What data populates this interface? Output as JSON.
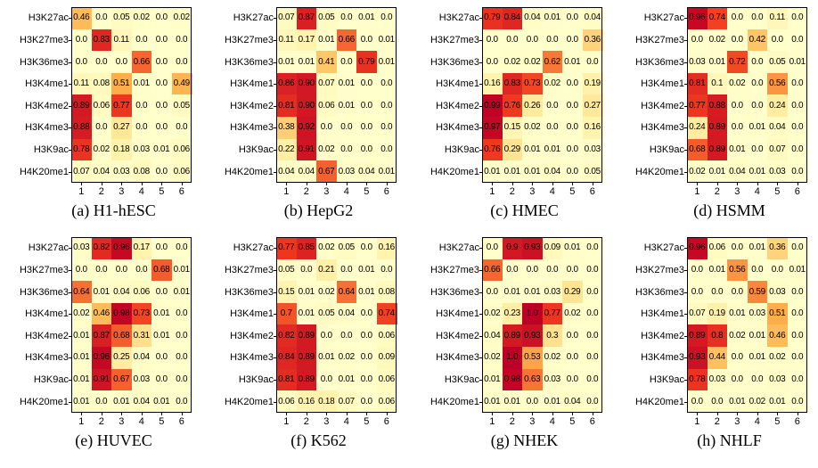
{
  "chart_data": [
    {
      "type": "heatmap",
      "caption": "(a) H1-hESC",
      "rows": [
        "H3K27ac",
        "H3K27me3",
        "H3K36me3",
        "H3K4me1",
        "H3K4me2",
        "H3K4me3",
        "H3K9ac",
        "H4K20me1"
      ],
      "columns": [
        "1",
        "2",
        "3",
        "4",
        "5",
        "6"
      ],
      "values": [
        [
          0.46,
          0.0,
          0.05,
          0.02,
          0.0,
          0.02
        ],
        [
          0.0,
          0.83,
          0.11,
          0.0,
          0.0,
          0.0
        ],
        [
          0.0,
          0.0,
          0.0,
          0.66,
          0.0,
          0.0
        ],
        [
          0.11,
          0.08,
          0.51,
          0.01,
          0.0,
          0.49
        ],
        [
          0.89,
          0.06,
          0.77,
          0.0,
          0.0,
          0.05
        ],
        [
          0.88,
          0.0,
          0.27,
          0.0,
          0.0,
          0.0
        ],
        [
          0.78,
          0.02,
          0.18,
          0.03,
          0.01,
          0.06
        ],
        [
          0.07,
          0.04,
          0.03,
          0.08,
          0.0,
          0.06
        ]
      ],
      "labels": [
        [
          "0.46",
          "0.0",
          "0.05",
          "0.02",
          "0.0",
          "0.02"
        ],
        [
          "0.0",
          "0.83",
          "0.11",
          "0.0",
          "0.0",
          "0.0"
        ],
        [
          "0.0",
          "0.0",
          "0.0",
          "0.66",
          "0.0",
          "0.0"
        ],
        [
          "0.11",
          "0.08",
          "0.51",
          "0.01",
          "0.0",
          "0.49"
        ],
        [
          "0.89",
          "0.06",
          "0.77",
          "0.0",
          "0.0",
          "0.05"
        ],
        [
          "0.88",
          "0.0",
          "0.27",
          "0.0",
          "0.0",
          "0.0"
        ],
        [
          "0.78",
          "0.02",
          "0.18",
          "0.03",
          "0.01",
          "0.06"
        ],
        [
          "0.07",
          "0.04",
          "0.03",
          "0.08",
          "0.0",
          "0.06"
        ]
      ]
    },
    {
      "type": "heatmap",
      "caption": "(b) HepG2",
      "rows": [
        "H3K27ac",
        "H3K27me3",
        "H3K36me3",
        "H3K4me1",
        "H3K4me2",
        "H3K4me3",
        "H3K9ac",
        "H4K20me1"
      ],
      "columns": [
        "1",
        "2",
        "3",
        "4",
        "5",
        "6"
      ],
      "values": [
        [
          0.07,
          0.87,
          0.05,
          0.0,
          0.01,
          0.0
        ],
        [
          0.11,
          0.17,
          0.01,
          0.66,
          0.0,
          0.01
        ],
        [
          0.01,
          0.01,
          0.41,
          0.0,
          0.79,
          0.01
        ],
        [
          0.86,
          0.9,
          0.07,
          0.01,
          0.0,
          0.0
        ],
        [
          0.81,
          0.9,
          0.06,
          0.01,
          0.0,
          0.0
        ],
        [
          0.38,
          0.92,
          0.0,
          0.0,
          0.0,
          0.0
        ],
        [
          0.22,
          0.91,
          0.02,
          0.0,
          0.0,
          0.0
        ],
        [
          0.04,
          0.04,
          0.67,
          0.03,
          0.04,
          0.01
        ]
      ],
      "labels": [
        [
          "0.07",
          "0.87",
          "0.05",
          "0.0",
          "0.01",
          "0.0"
        ],
        [
          "0.11",
          "0.17",
          "0.01",
          "0.66",
          "0.0",
          "0.01"
        ],
        [
          "0.01",
          "0.01",
          "0.41",
          "0.0",
          "0.79",
          "0.01"
        ],
        [
          "0.86",
          "0.90",
          "0.07",
          "0.01",
          "0.0",
          "0.0"
        ],
        [
          "0.81",
          "0.90",
          "0.06",
          "0.01",
          "0.0",
          "0.0"
        ],
        [
          "0.38",
          "0.92",
          "0.0",
          "0.0",
          "0.0",
          "0.0"
        ],
        [
          "0.22",
          "0.91",
          "0.02",
          "0.0",
          "0.0",
          "0.0"
        ],
        [
          "0.04",
          "0.04",
          "0.67",
          "0.03",
          "0.04",
          "0.01"
        ]
      ]
    },
    {
      "type": "heatmap",
      "caption": "(c) HMEC",
      "rows": [
        "H3K27ac",
        "H3K27me3",
        "H3K36me3",
        "H3K4me1",
        "H3K4me2",
        "H3K4me3",
        "H3K9ac",
        "H4K20me1"
      ],
      "columns": [
        "1",
        "2",
        "3",
        "4",
        "5",
        "6"
      ],
      "values": [
        [
          0.79,
          0.84,
          0.04,
          0.01,
          0.0,
          0.04
        ],
        [
          0.0,
          0.0,
          0.0,
          0.0,
          0.0,
          0.36
        ],
        [
          0.0,
          0.02,
          0.02,
          0.62,
          0.01,
          0.0
        ],
        [
          0.16,
          0.83,
          0.73,
          0.02,
          0.0,
          0.19
        ],
        [
          0.99,
          0.76,
          0.26,
          0.0,
          0.0,
          0.27
        ],
        [
          0.97,
          0.15,
          0.02,
          0.0,
          0.0,
          0.16
        ],
        [
          0.76,
          0.29,
          0.01,
          0.01,
          0.0,
          0.03
        ],
        [
          0.01,
          0.01,
          0.01,
          0.04,
          0.0,
          0.05
        ]
      ],
      "labels": [
        [
          "0.79",
          "0.84",
          "0.04",
          "0.01",
          "0.0",
          "0.04"
        ],
        [
          "0.0",
          "0.0",
          "0.0",
          "0.0",
          "0.0",
          "0.36"
        ],
        [
          "0.0",
          "0.02",
          "0.02",
          "0.62",
          "0.01",
          "0.0"
        ],
        [
          "0.16",
          "0.83",
          "0.73",
          "0.02",
          "0.0",
          "0.19"
        ],
        [
          "0.99",
          "0.76",
          "0.26",
          "0.0",
          "0.0",
          "0.27"
        ],
        [
          "0.97",
          "0.15",
          "0.02",
          "0.0",
          "0.0",
          "0.16"
        ],
        [
          "0.76",
          "0.29",
          "0.01",
          "0.01",
          "0.0",
          "0.03"
        ],
        [
          "0.01",
          "0.01",
          "0.01",
          "0.04",
          "0.0",
          "0.05"
        ]
      ]
    },
    {
      "type": "heatmap",
      "caption": "(d) HSMM",
      "rows": [
        "H3K27ac",
        "H3K27me3",
        "H3K36me3",
        "H3K4me1",
        "H3K4me2",
        "H3K4me3",
        "H3K9ac",
        "H4K20me1"
      ],
      "columns": [
        "1",
        "2",
        "3",
        "4",
        "5",
        "6"
      ],
      "values": [
        [
          0.96,
          0.74,
          0.0,
          0.0,
          0.11,
          0.0
        ],
        [
          0.0,
          0.02,
          0.0,
          0.42,
          0.0,
          0.0
        ],
        [
          0.03,
          0.01,
          0.72,
          0.0,
          0.05,
          0.01
        ],
        [
          0.81,
          0.1,
          0.02,
          0.0,
          0.56,
          0.0
        ],
        [
          0.77,
          0.88,
          0.0,
          0.0,
          0.24,
          0.0
        ],
        [
          0.24,
          0.89,
          0.0,
          0.01,
          0.04,
          0.0
        ],
        [
          0.68,
          0.89,
          0.01,
          0.0,
          0.07,
          0.0
        ],
        [
          0.02,
          0.01,
          0.04,
          0.01,
          0.03,
          0.0
        ]
      ],
      "labels": [
        [
          "0.96",
          "0.74",
          "0.0",
          "0.0",
          "0.11",
          "0.0"
        ],
        [
          "0.0",
          "0.02",
          "0.0",
          "0.42",
          "0.0",
          "0.0"
        ],
        [
          "0.03",
          "0.01",
          "0.72",
          "0.0",
          "0.05",
          "0.01"
        ],
        [
          "0.81",
          "0.1",
          "0.02",
          "0.0",
          "0.56",
          "0.0"
        ],
        [
          "0.77",
          "0.88",
          "0.0",
          "0.0",
          "0.24",
          "0.0"
        ],
        [
          "0.24",
          "0.89",
          "0.0",
          "0.01",
          "0.04",
          "0.0"
        ],
        [
          "0.68",
          "0.89",
          "0.01",
          "0.0",
          "0.07",
          "0.0"
        ],
        [
          "0.02",
          "0.01",
          "0.04",
          "0.01",
          "0.03",
          "0.0"
        ]
      ]
    },
    {
      "type": "heatmap",
      "caption": "(e) HUVEC",
      "rows": [
        "H3K27ac",
        "H3K27me3",
        "H3K36me3",
        "H3K4me1",
        "H3K4me2",
        "H3K4me3",
        "H3K9ac",
        "H4K20me1"
      ],
      "columns": [
        "1",
        "2",
        "3",
        "4",
        "5",
        "6"
      ],
      "values": [
        [
          0.03,
          0.82,
          0.96,
          0.17,
          0.0,
          0.0
        ],
        [
          0.0,
          0.0,
          0.0,
          0.0,
          0.68,
          0.01
        ],
        [
          0.64,
          0.01,
          0.04,
          0.06,
          0.0,
          0.01
        ],
        [
          0.02,
          0.46,
          0.98,
          0.73,
          0.01,
          0.0
        ],
        [
          0.01,
          0.87,
          0.68,
          0.31,
          0.01,
          0.0
        ],
        [
          0.01,
          0.96,
          0.25,
          0.04,
          0.0,
          0.0
        ],
        [
          0.01,
          0.91,
          0.67,
          0.03,
          0.0,
          0.0
        ],
        [
          0.01,
          0.0,
          0.01,
          0.04,
          0.01,
          0.0
        ]
      ],
      "labels": [
        [
          "0.03",
          "0.82",
          "0.96",
          "0.17",
          "0.0",
          "0.0"
        ],
        [
          "0.0",
          "0.0",
          "0.0",
          "0.0",
          "0.68",
          "0.01"
        ],
        [
          "0.64",
          "0.01",
          "0.04",
          "0.06",
          "0.0",
          "0.01"
        ],
        [
          "0.02",
          "0.46",
          "0.98",
          "0.73",
          "0.01",
          "0.0"
        ],
        [
          "0.01",
          "0.87",
          "0.68",
          "0.31",
          "0.01",
          "0.0"
        ],
        [
          "0.01",
          "0.96",
          "0.25",
          "0.04",
          "0.0",
          "0.0"
        ],
        [
          "0.01",
          "0.91",
          "0.67",
          "0.03",
          "0.0",
          "0.0"
        ],
        [
          "0.01",
          "0.0",
          "0.01",
          "0.04",
          "0.01",
          "0.0"
        ]
      ]
    },
    {
      "type": "heatmap",
      "caption": "(f) K562",
      "rows": [
        "H3K27ac",
        "H3K27me3",
        "H3K36me3",
        "H3K4me1",
        "H3K4me2",
        "H3K4me3",
        "H3K9ac",
        "H4K20me1"
      ],
      "columns": [
        "1",
        "2",
        "3",
        "4",
        "5",
        "6"
      ],
      "values": [
        [
          0.77,
          0.85,
          0.02,
          0.05,
          0.0,
          0.16
        ],
        [
          0.05,
          0.0,
          0.21,
          0.0,
          0.01,
          0.0
        ],
        [
          0.15,
          0.01,
          0.02,
          0.64,
          0.01,
          0.08
        ],
        [
          0.7,
          0.01,
          0.05,
          0.04,
          0.0,
          0.74
        ],
        [
          0.82,
          0.89,
          0.0,
          0.0,
          0.0,
          0.06
        ],
        [
          0.84,
          0.89,
          0.01,
          0.02,
          0.0,
          0.09
        ],
        [
          0.81,
          0.89,
          0.0,
          0.01,
          0.0,
          0.06
        ],
        [
          0.06,
          0.16,
          0.18,
          0.07,
          0.0,
          0.06
        ]
      ],
      "labels": [
        [
          "0.77",
          "0.85",
          "0.02",
          "0.05",
          "0.0",
          "0.16"
        ],
        [
          "0.05",
          "0.0",
          "0.21",
          "0.0",
          "0.01",
          "0.0"
        ],
        [
          "0.15",
          "0.01",
          "0.02",
          "0.64",
          "0.01",
          "0.08"
        ],
        [
          "0.7",
          "0.01",
          "0.05",
          "0.04",
          "0.0",
          "0.74"
        ],
        [
          "0.82",
          "0.89",
          "0.0",
          "0.0",
          "0.0",
          "0.06"
        ],
        [
          "0.84",
          "0.89",
          "0.01",
          "0.02",
          "0.0",
          "0.09"
        ],
        [
          "0.81",
          "0.89",
          "0.0",
          "0.01",
          "0.0",
          "0.06"
        ],
        [
          "0.06",
          "0.16",
          "0.18",
          "0.07",
          "0.0",
          "0.06"
        ]
      ]
    },
    {
      "type": "heatmap",
      "caption": "(g) NHEK",
      "rows": [
        "H3K27ac",
        "H3K27me3",
        "H3K36me3",
        "H3K4me1",
        "H3K4me2",
        "H3K4me3",
        "H3K9ac",
        "H4K20me1"
      ],
      "columns": [
        "1",
        "2",
        "3",
        "4",
        "5",
        "6"
      ],
      "values": [
        [
          0.0,
          0.9,
          0.93,
          0.09,
          0.01,
          0.0
        ],
        [
          0.66,
          0.0,
          0.0,
          0.0,
          0.0,
          0.0
        ],
        [
          0.0,
          0.01,
          0.01,
          0.03,
          0.29,
          0.0
        ],
        [
          0.02,
          0.23,
          1.0,
          0.77,
          0.02,
          0.0
        ],
        [
          0.04,
          0.89,
          0.93,
          0.3,
          0.0,
          0.0
        ],
        [
          0.02,
          1.0,
          0.53,
          0.02,
          0.0,
          0.0
        ],
        [
          0.01,
          0.98,
          0.63,
          0.03,
          0.0,
          0.0
        ],
        [
          0.01,
          0.01,
          0.0,
          0.01,
          0.04,
          0.0
        ]
      ],
      "labels": [
        [
          "0.0",
          "0.9",
          "0.93",
          "0.09",
          "0.01",
          "0.0"
        ],
        [
          "0.66",
          "0.0",
          "0.0",
          "0.0",
          "0.0",
          "0.0"
        ],
        [
          "0.0",
          "0.01",
          "0.01",
          "0.03",
          "0.29",
          "0.0"
        ],
        [
          "0.02",
          "0.23",
          "1.0",
          "0.77",
          "0.02",
          "0.0"
        ],
        [
          "0.04",
          "0.89",
          "0.93",
          "0.3",
          "0.0",
          "0.0"
        ],
        [
          "0.02",
          "1.0",
          "0.53",
          "0.02",
          "0.0",
          "0.0"
        ],
        [
          "0.01",
          "0.98",
          "0.63",
          "0.03",
          "0.0",
          "0.0"
        ],
        [
          "0.01",
          "0.01",
          "0.0",
          "0.01",
          "0.04",
          "0.0"
        ]
      ]
    },
    {
      "type": "heatmap",
      "caption": "(h) NHLF",
      "rows": [
        "H3K27ac",
        "H3K27me3",
        "H3K36me3",
        "H3K4me1",
        "H3K4me2",
        "H3K4me3",
        "H3K9ac",
        "H4K20me1"
      ],
      "columns": [
        "1",
        "2",
        "3",
        "4",
        "5",
        "6"
      ],
      "values": [
        [
          0.96,
          0.06,
          0.0,
          0.01,
          0.36,
          0.0
        ],
        [
          0.0,
          0.01,
          0.56,
          0.0,
          0.0,
          0.01
        ],
        [
          0.0,
          0.0,
          0.0,
          0.59,
          0.03,
          0.0
        ],
        [
          0.07,
          0.19,
          0.01,
          0.03,
          0.51,
          0.0
        ],
        [
          0.89,
          0.8,
          0.02,
          0.01,
          0.46,
          0.0
        ],
        [
          0.93,
          0.44,
          0.0,
          0.01,
          0.02,
          0.0
        ],
        [
          0.78,
          0.03,
          0.0,
          0.0,
          0.03,
          0.0
        ],
        [
          0.0,
          0.0,
          0.01,
          0.02,
          0.01,
          0.0
        ]
      ],
      "labels": [
        [
          "0.96",
          "0.06",
          "0.0",
          "0.01",
          "0.36",
          "0.0"
        ],
        [
          "0.0",
          "0.01",
          "0.56",
          "0.0",
          "0.0",
          "0.01"
        ],
        [
          "0.0",
          "0.0",
          "0.0",
          "0.59",
          "0.03",
          "0.0"
        ],
        [
          "0.07",
          "0.19",
          "0.01",
          "0.03",
          "0.51",
          "0.0"
        ],
        [
          "0.89",
          "0.8",
          "0.02",
          "0.01",
          "0.46",
          "0.0"
        ],
        [
          "0.93",
          "0.44",
          "0.0",
          "0.01",
          "0.02",
          "0.0"
        ],
        [
          "0.78",
          "0.03",
          "0.0",
          "0.0",
          "0.03",
          "0.0"
        ],
        [
          "0.0",
          "0.0",
          "0.01",
          "0.02",
          "0.01",
          "0.0"
        ]
      ]
    }
  ],
  "colormap": {
    "low": "#ffffcc",
    "mid_low": "#ffeda0",
    "mid": "#feb24c",
    "mid_high": "#f03b20",
    "high": "#bd0026"
  }
}
